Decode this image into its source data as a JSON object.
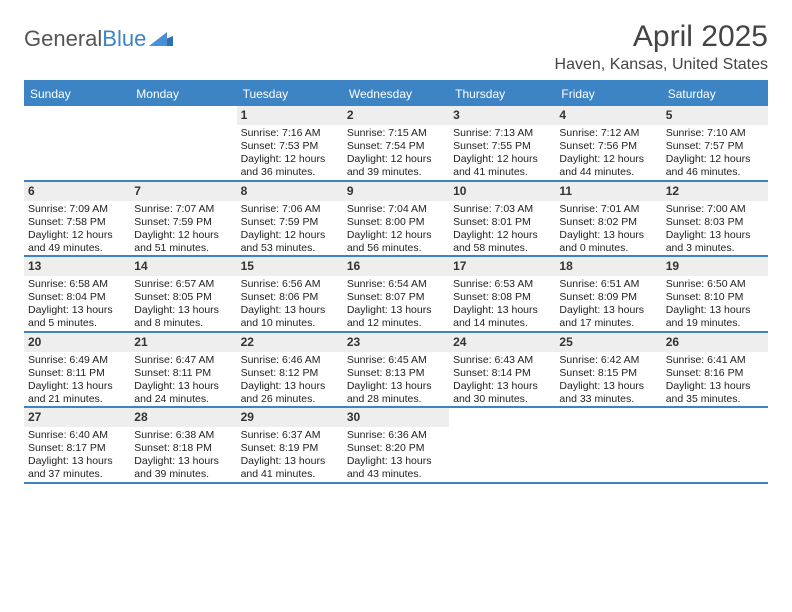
{
  "brand": {
    "word1": "General",
    "word2": "Blue",
    "flag_color": "#2f6fb0"
  },
  "title": "April 2025",
  "location": "Haven, Kansas, United States",
  "colors": {
    "header_bar": "#3d84c4",
    "rule": "#3d84c4",
    "daynum_bg": "#eeeeee",
    "text": "#333333"
  },
  "daynames": [
    "Sunday",
    "Monday",
    "Tuesday",
    "Wednesday",
    "Thursday",
    "Friday",
    "Saturday"
  ],
  "weeks": [
    [
      null,
      null,
      {
        "n": "1",
        "sr": "Sunrise: 7:16 AM",
        "ss": "Sunset: 7:53 PM",
        "dl1": "Daylight: 12 hours",
        "dl2": "and 36 minutes."
      },
      {
        "n": "2",
        "sr": "Sunrise: 7:15 AM",
        "ss": "Sunset: 7:54 PM",
        "dl1": "Daylight: 12 hours",
        "dl2": "and 39 minutes."
      },
      {
        "n": "3",
        "sr": "Sunrise: 7:13 AM",
        "ss": "Sunset: 7:55 PM",
        "dl1": "Daylight: 12 hours",
        "dl2": "and 41 minutes."
      },
      {
        "n": "4",
        "sr": "Sunrise: 7:12 AM",
        "ss": "Sunset: 7:56 PM",
        "dl1": "Daylight: 12 hours",
        "dl2": "and 44 minutes."
      },
      {
        "n": "5",
        "sr": "Sunrise: 7:10 AM",
        "ss": "Sunset: 7:57 PM",
        "dl1": "Daylight: 12 hours",
        "dl2": "and 46 minutes."
      }
    ],
    [
      {
        "n": "6",
        "sr": "Sunrise: 7:09 AM",
        "ss": "Sunset: 7:58 PM",
        "dl1": "Daylight: 12 hours",
        "dl2": "and 49 minutes."
      },
      {
        "n": "7",
        "sr": "Sunrise: 7:07 AM",
        "ss": "Sunset: 7:59 PM",
        "dl1": "Daylight: 12 hours",
        "dl2": "and 51 minutes."
      },
      {
        "n": "8",
        "sr": "Sunrise: 7:06 AM",
        "ss": "Sunset: 7:59 PM",
        "dl1": "Daylight: 12 hours",
        "dl2": "and 53 minutes."
      },
      {
        "n": "9",
        "sr": "Sunrise: 7:04 AM",
        "ss": "Sunset: 8:00 PM",
        "dl1": "Daylight: 12 hours",
        "dl2": "and 56 minutes."
      },
      {
        "n": "10",
        "sr": "Sunrise: 7:03 AM",
        "ss": "Sunset: 8:01 PM",
        "dl1": "Daylight: 12 hours",
        "dl2": "and 58 minutes."
      },
      {
        "n": "11",
        "sr": "Sunrise: 7:01 AM",
        "ss": "Sunset: 8:02 PM",
        "dl1": "Daylight: 13 hours",
        "dl2": "and 0 minutes."
      },
      {
        "n": "12",
        "sr": "Sunrise: 7:00 AM",
        "ss": "Sunset: 8:03 PM",
        "dl1": "Daylight: 13 hours",
        "dl2": "and 3 minutes."
      }
    ],
    [
      {
        "n": "13",
        "sr": "Sunrise: 6:58 AM",
        "ss": "Sunset: 8:04 PM",
        "dl1": "Daylight: 13 hours",
        "dl2": "and 5 minutes."
      },
      {
        "n": "14",
        "sr": "Sunrise: 6:57 AM",
        "ss": "Sunset: 8:05 PM",
        "dl1": "Daylight: 13 hours",
        "dl2": "and 8 minutes."
      },
      {
        "n": "15",
        "sr": "Sunrise: 6:56 AM",
        "ss": "Sunset: 8:06 PM",
        "dl1": "Daylight: 13 hours",
        "dl2": "and 10 minutes."
      },
      {
        "n": "16",
        "sr": "Sunrise: 6:54 AM",
        "ss": "Sunset: 8:07 PM",
        "dl1": "Daylight: 13 hours",
        "dl2": "and 12 minutes."
      },
      {
        "n": "17",
        "sr": "Sunrise: 6:53 AM",
        "ss": "Sunset: 8:08 PM",
        "dl1": "Daylight: 13 hours",
        "dl2": "and 14 minutes."
      },
      {
        "n": "18",
        "sr": "Sunrise: 6:51 AM",
        "ss": "Sunset: 8:09 PM",
        "dl1": "Daylight: 13 hours",
        "dl2": "and 17 minutes."
      },
      {
        "n": "19",
        "sr": "Sunrise: 6:50 AM",
        "ss": "Sunset: 8:10 PM",
        "dl1": "Daylight: 13 hours",
        "dl2": "and 19 minutes."
      }
    ],
    [
      {
        "n": "20",
        "sr": "Sunrise: 6:49 AM",
        "ss": "Sunset: 8:11 PM",
        "dl1": "Daylight: 13 hours",
        "dl2": "and 21 minutes."
      },
      {
        "n": "21",
        "sr": "Sunrise: 6:47 AM",
        "ss": "Sunset: 8:11 PM",
        "dl1": "Daylight: 13 hours",
        "dl2": "and 24 minutes."
      },
      {
        "n": "22",
        "sr": "Sunrise: 6:46 AM",
        "ss": "Sunset: 8:12 PM",
        "dl1": "Daylight: 13 hours",
        "dl2": "and 26 minutes."
      },
      {
        "n": "23",
        "sr": "Sunrise: 6:45 AM",
        "ss": "Sunset: 8:13 PM",
        "dl1": "Daylight: 13 hours",
        "dl2": "and 28 minutes."
      },
      {
        "n": "24",
        "sr": "Sunrise: 6:43 AM",
        "ss": "Sunset: 8:14 PM",
        "dl1": "Daylight: 13 hours",
        "dl2": "and 30 minutes."
      },
      {
        "n": "25",
        "sr": "Sunrise: 6:42 AM",
        "ss": "Sunset: 8:15 PM",
        "dl1": "Daylight: 13 hours",
        "dl2": "and 33 minutes."
      },
      {
        "n": "26",
        "sr": "Sunrise: 6:41 AM",
        "ss": "Sunset: 8:16 PM",
        "dl1": "Daylight: 13 hours",
        "dl2": "and 35 minutes."
      }
    ],
    [
      {
        "n": "27",
        "sr": "Sunrise: 6:40 AM",
        "ss": "Sunset: 8:17 PM",
        "dl1": "Daylight: 13 hours",
        "dl2": "and 37 minutes."
      },
      {
        "n": "28",
        "sr": "Sunrise: 6:38 AM",
        "ss": "Sunset: 8:18 PM",
        "dl1": "Daylight: 13 hours",
        "dl2": "and 39 minutes."
      },
      {
        "n": "29",
        "sr": "Sunrise: 6:37 AM",
        "ss": "Sunset: 8:19 PM",
        "dl1": "Daylight: 13 hours",
        "dl2": "and 41 minutes."
      },
      {
        "n": "30",
        "sr": "Sunrise: 6:36 AM",
        "ss": "Sunset: 8:20 PM",
        "dl1": "Daylight: 13 hours",
        "dl2": "and 43 minutes."
      },
      null,
      null,
      null
    ]
  ]
}
